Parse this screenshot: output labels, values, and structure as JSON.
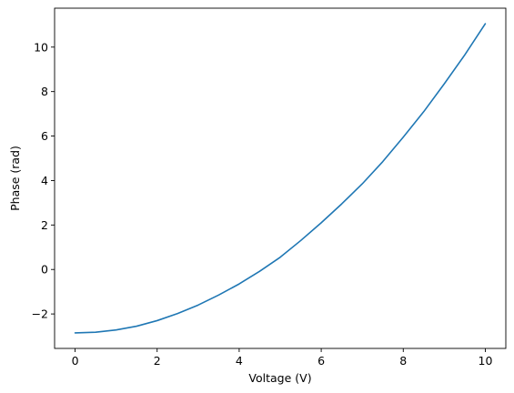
{
  "chart_data": {
    "type": "line",
    "title": "",
    "xlabel": "Voltage (V)",
    "ylabel": "Phase (rad)",
    "xlim": [
      -0.5,
      10.5
    ],
    "ylim": [
      -3.55,
      11.75
    ],
    "x_ticks": [
      0,
      2,
      4,
      6,
      8,
      10
    ],
    "x_tick_labels": [
      "0",
      "2",
      "4",
      "6",
      "8",
      "10"
    ],
    "y_ticks": [
      -2,
      0,
      2,
      4,
      6,
      8,
      10
    ],
    "y_tick_labels": [
      "−2",
      "0",
      "2",
      "4",
      "6",
      "8",
      "10"
    ],
    "grid": false,
    "legend": false,
    "series": [
      {
        "color": "#1f77b4",
        "x": [
          0,
          0.5,
          1,
          1.5,
          2,
          2.5,
          3,
          3.5,
          4,
          4.5,
          5,
          5.5,
          6,
          6.5,
          7,
          7.5,
          8,
          8.5,
          9,
          9.5,
          10
        ],
        "y": [
          -2.85,
          -2.82,
          -2.72,
          -2.55,
          -2.3,
          -1.98,
          -1.6,
          -1.15,
          -0.65,
          -0.08,
          0.55,
          1.3,
          2.1,
          2.95,
          3.85,
          4.85,
          5.95,
          7.1,
          8.35,
          9.65,
          11.05
        ]
      }
    ]
  }
}
